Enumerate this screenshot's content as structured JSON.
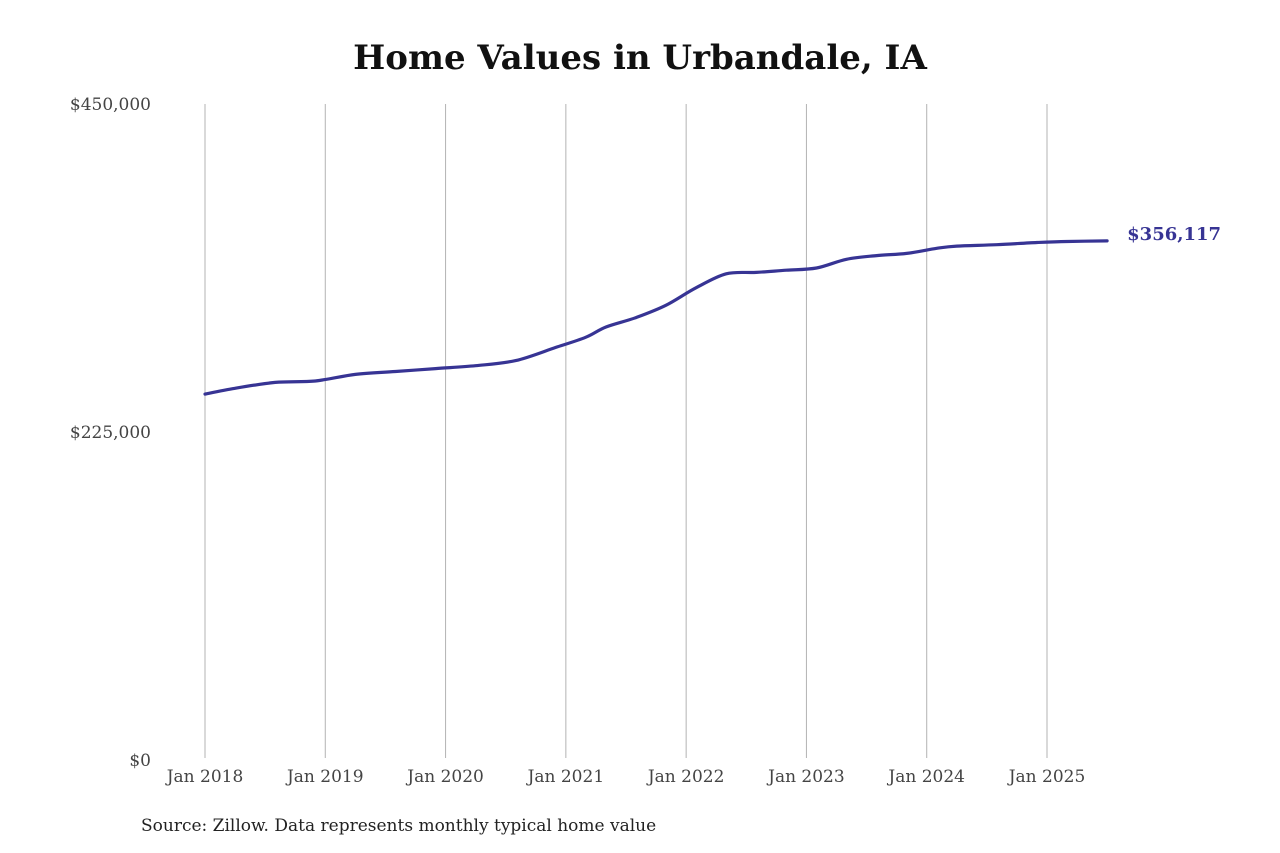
{
  "chart_data": {
    "type": "line",
    "title": "Home Values in Urbandale, IA",
    "xlabel": "",
    "ylabel": "",
    "ylim": [
      0,
      450000
    ],
    "y_ticks": [
      0,
      225000,
      450000
    ],
    "y_tick_labels": [
      "$0",
      "$225,000",
      "$450,000"
    ],
    "x_ticks": [
      "2018-01",
      "2019-01",
      "2020-01",
      "2021-01",
      "2022-01",
      "2023-01",
      "2024-01",
      "2025-01"
    ],
    "x_tick_labels": [
      "Jan 2018",
      "Jan 2019",
      "Jan 2020",
      "Jan 2021",
      "Jan 2022",
      "Jan 2023",
      "Jan 2024",
      "Jan 2025"
    ],
    "grid": "vertical",
    "line_color": "#373494",
    "end_label": "$356,117",
    "series": [
      {
        "x": [
          "2018-01",
          "2018-04",
          "2018-08",
          "2018-12",
          "2019-04",
          "2019-08",
          "2019-12",
          "2020-04",
          "2020-08",
          "2020-12",
          "2021-03",
          "2021-05",
          "2021-08",
          "2021-11",
          "2022-02",
          "2022-05",
          "2022-08",
          "2022-11",
          "2023-02",
          "2023-05",
          "2023-08",
          "2023-11",
          "2024-02",
          "2024-04",
          "2024-08",
          "2024-12",
          "2025-03",
          "2025-07"
        ],
        "values": [
          251000,
          255000,
          259000,
          260000,
          264500,
          266500,
          268500,
          270500,
          274000,
          283000,
          290000,
          297000,
          303500,
          312000,
          324000,
          333500,
          334500,
          336000,
          337500,
          343500,
          346000,
          347500,
          351000,
          352500,
          353500,
          355000,
          355700,
          356117
        ]
      }
    ]
  },
  "source": "Source: Zillow. Data represents monthly typical home value"
}
